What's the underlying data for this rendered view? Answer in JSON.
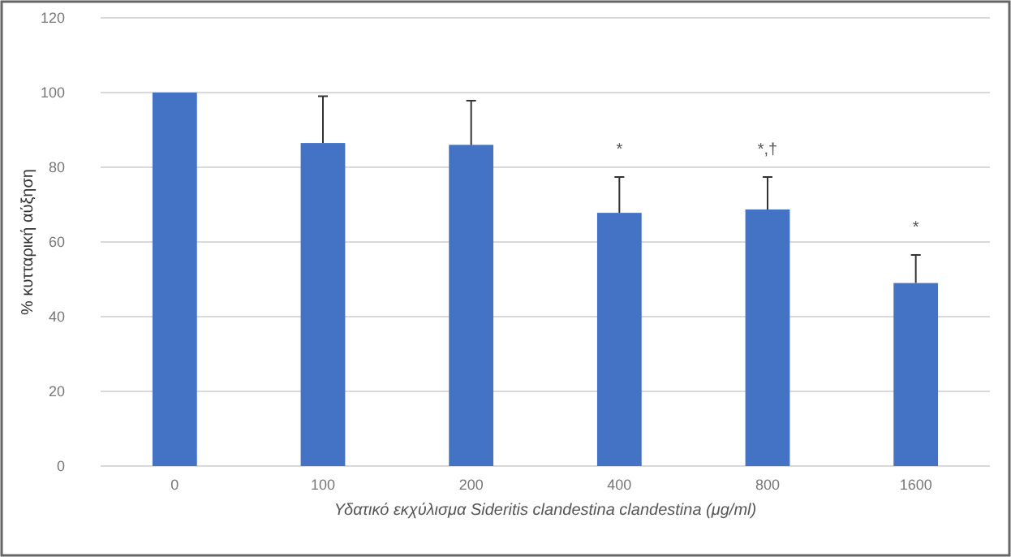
{
  "chart_data": {
    "type": "bar",
    "xlabel": "Υδατικό εκχύλισμα Sideritis clandestina clandestina (μg/ml)",
    "ylabel": "% κυτταρική αύξηση",
    "categories": [
      "0",
      "100",
      "200",
      "400",
      "800",
      "1600"
    ],
    "values": [
      100,
      86.5,
      86,
      67.8,
      68.7,
      49
    ],
    "errors": [
      null,
      12.5,
      11.8,
      9.6,
      8.7,
      7.5
    ],
    "color": "#4472c4",
    "ylim": [
      0,
      120
    ],
    "yticks": [
      0,
      20,
      40,
      60,
      80,
      100,
      120
    ],
    "grid": "y",
    "annotations": [
      {
        "text": "*",
        "x": "400",
        "y": 77.4
      },
      {
        "text": "*,†",
        "x": "800",
        "y": 77.4
      },
      {
        "text": "*",
        "x": "1600",
        "y": 56.5
      }
    ]
  }
}
